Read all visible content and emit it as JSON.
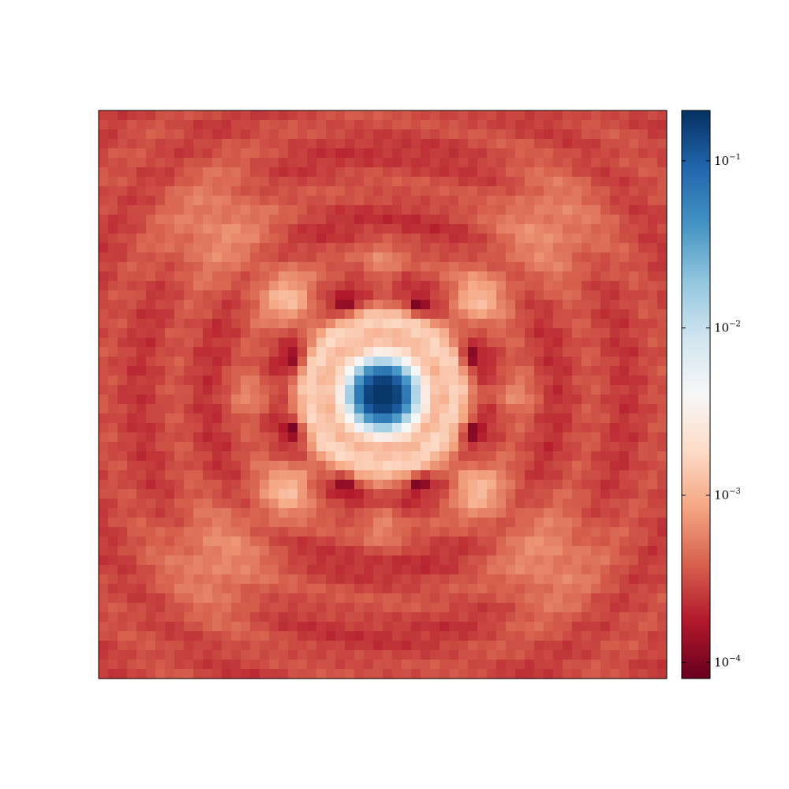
{
  "chart_data": {
    "type": "heatmap",
    "title": "",
    "xlabel": "",
    "ylabel": "",
    "x_ticks_visible": false,
    "y_ticks_visible": false,
    "grid": false,
    "grid_size": [
      60,
      60
    ],
    "value_range": [
      8e-05,
      0.2
    ],
    "center_value": 0.18,
    "colorbar": {
      "scale": "log",
      "placement": "right",
      "colormap": "RdBu",
      "colors_low_to_high": [
        "#67001f",
        "#b2182b",
        "#d6604d",
        "#f4a582",
        "#fddbc7",
        "#f7f7f7",
        "#d1e5f0",
        "#92c5de",
        "#4393c3",
        "#2166ac",
        "#053061"
      ],
      "ticks": [
        {
          "value": 0.0001,
          "base": "10",
          "exponent": "−4"
        },
        {
          "value": 0.001,
          "base": "10",
          "exponent": "−3"
        },
        {
          "value": 0.01,
          "base": "10",
          "exponent": "−2"
        },
        {
          "value": 0.1,
          "base": "10",
          "exponent": "−1"
        }
      ]
    }
  }
}
